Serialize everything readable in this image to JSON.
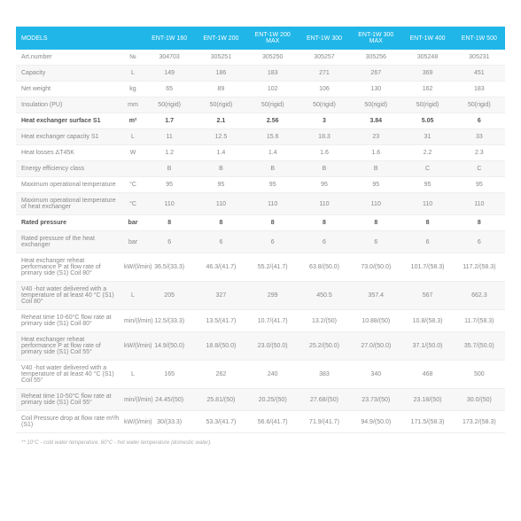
{
  "table": {
    "header_bg": "#20b6e8",
    "header_fg": "#ffffff",
    "row_alt_bg": "#f7f7f7",
    "text_color": "#888888",
    "bold_color": "#555555",
    "border_color": "#eeeeee",
    "models_label": "MODELS",
    "columns": [
      "ENT-1W 160",
      "ENT-1W 200",
      "ENT-1W 200 MAX",
      "ENT-1W 300",
      "ENT-1W 300 MAX",
      "ENT-1W 400",
      "ENT-1W 500"
    ],
    "rows": [
      {
        "label": "Art.number",
        "unit": "№",
        "vals": [
          "304703",
          "305251",
          "305250",
          "305257",
          "305256",
          "305248",
          "305231"
        ]
      },
      {
        "label": "Capacity",
        "unit": "L",
        "vals": [
          "149",
          "186",
          "183",
          "271",
          "267",
          "369",
          "451"
        ]
      },
      {
        "label": "Net weight",
        "unit": "kg",
        "vals": [
          "65",
          "89",
          "102",
          "106",
          "130",
          "162",
          "183"
        ]
      },
      {
        "label": "Insulation (PU)",
        "unit": "mm",
        "vals": [
          "50(rigid)",
          "50(rigid)",
          "50(rigid)",
          "50(rigid)",
          "50(rigid)",
          "50(rigid)",
          "50(rigid)"
        ]
      },
      {
        "label": "Heat exchanger surface S1",
        "unit": "m²",
        "vals": [
          "1.7",
          "2.1",
          "2.56",
          "3",
          "3.84",
          "5.05",
          "6"
        ],
        "bold": true
      },
      {
        "label": "Heat exchanger capacity S1",
        "unit": "L",
        "vals": [
          "11",
          "12.5",
          "15.6",
          "18.3",
          "23",
          "31",
          "33"
        ]
      },
      {
        "label": "Heat losses ΔT45K",
        "unit": "W",
        "vals": [
          "1.2",
          "1.4",
          "1.4",
          "1.6",
          "1.6",
          "2.2",
          "2.3"
        ]
      },
      {
        "label": "Energy efficiency class",
        "unit": "",
        "vals": [
          "B",
          "B",
          "B",
          "B",
          "B",
          "C",
          "C"
        ]
      },
      {
        "label": "Maximum operational temperature",
        "unit": "°C",
        "vals": [
          "95",
          "95",
          "95",
          "95",
          "95",
          "95",
          "95"
        ]
      },
      {
        "label": "Maximum operational temperature of heat exchanger",
        "unit": "°C",
        "vals": [
          "110",
          "110",
          "110",
          "110",
          "110",
          "110",
          "110"
        ]
      },
      {
        "label": "Rated pressure",
        "unit": "bar",
        "vals": [
          "8",
          "8",
          "8",
          "8",
          "8",
          "8",
          "8"
        ],
        "bold": true
      },
      {
        "label": "Rated pressure of the heat exchanger",
        "unit": "bar",
        "vals": [
          "6",
          "6",
          "6",
          "6",
          "6",
          "6",
          "6"
        ]
      },
      {
        "label": "Heat exchanger reheat performance P at flow rate of primary side (S1) Coil 80°",
        "unit": "kW/(l/min)",
        "vals": [
          "36.5/(33.3)",
          "46.3/(41.7)",
          "55.2/(41.7)",
          "63.8/(50.0)",
          "73.0/(50.0)",
          "101.7/(58.3)",
          "117.2/(58.3)"
        ]
      },
      {
        "label": "V40 -hot water delivered with a temperature of at least 40 °C (S1) Coil 80°",
        "unit": "L",
        "vals": [
          "205",
          "327",
          "299",
          "450.5",
          "357.4",
          "567",
          "662.3"
        ]
      },
      {
        "label": "Reheat time 10-60°C flow rate at primary side (S1) Coil 80°",
        "unit": "min/(l/min)",
        "vals": [
          "12.5/(33.3)",
          "13.5/(41.7)",
          "10.7/(41.7)",
          "13.2/(50)",
          "10.88/(50)",
          "10.8/(58.3)",
          "11.7/(58.3)"
        ]
      },
      {
        "label": "Heat exchanger reheat performance P at flow rate of primary side (S1) Coil 55°",
        "unit": "kW/(l/min)",
        "vals": [
          "14.9/(50.0)",
          "18.8/(50.0)",
          "23.0/(50.0)",
          "25.2/(50.0)",
          "27.0/(50.0)",
          "37.1/(50.0)",
          "35.7/(50.0)"
        ]
      },
      {
        "label": "V40 -hot water delivered with a temperature of at least 40 °C (S1) Coil 55°",
        "unit": "L",
        "vals": [
          "165",
          "262",
          "240",
          "383",
          "340",
          "468",
          "500"
        ]
      },
      {
        "label": "Reheat time 10-50°C flow rate at primary side (S1) Coil 55°",
        "unit": "min/(l/min)",
        "vals": [
          "24.45/(50)",
          "25.81/(50)",
          "20.25/(50)",
          "27.68/(50)",
          "23.73/(50)",
          "23.18/(50)",
          "30.0/(50)"
        ]
      },
      {
        "label": "Coil Pressure drop at flow rate m³/h (S1)",
        "unit": "kW/(l/min)",
        "vals": [
          "30/(33.3)",
          "53.3/(41.7)",
          "56.6/(41.7)",
          "71.9/(41.7)",
          "94.9/(50.0)",
          "171.5/(58.3)",
          "173.2/(58.3)"
        ]
      }
    ],
    "footnote": "** 10°C - cold water temperature, 60°C - hot water temperature (domestic water)."
  }
}
